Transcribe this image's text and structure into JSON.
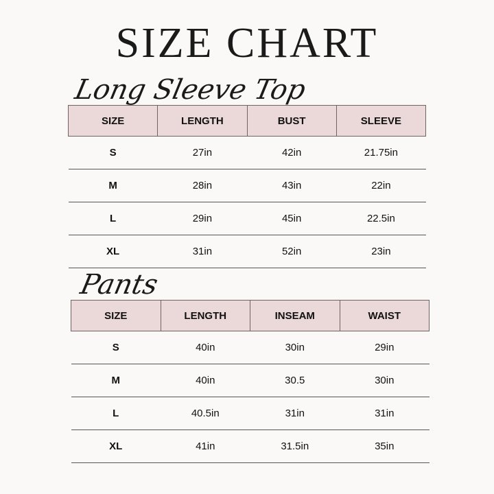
{
  "title": "SIZE CHART",
  "colors": {
    "header_fill": "#ebd8d8",
    "background": "#faf9f7"
  },
  "tops": {
    "heading": "Long Sleeve Top",
    "columns": [
      "SIZE",
      "LENGTH",
      "BUST",
      "SLEEVE"
    ],
    "rows": [
      [
        "S",
        "27in",
        "42in",
        "21.75in"
      ],
      [
        "M",
        "28in",
        "43in",
        "22in"
      ],
      [
        "L",
        "29in",
        "45in",
        "22.5in"
      ],
      [
        "XL",
        "31in",
        "52in",
        "23in"
      ]
    ]
  },
  "pants": {
    "heading": "Pants",
    "columns": [
      "SIZE",
      "LENGTH",
      "INSEAM",
      "WAIST"
    ],
    "rows": [
      [
        "S",
        "40in",
        "30in",
        "29in"
      ],
      [
        "M",
        "40in",
        "30.5",
        "30in"
      ],
      [
        "L",
        "40.5in",
        "31in",
        "31in"
      ],
      [
        "XL",
        "41in",
        "31.5in",
        "35in"
      ]
    ]
  }
}
